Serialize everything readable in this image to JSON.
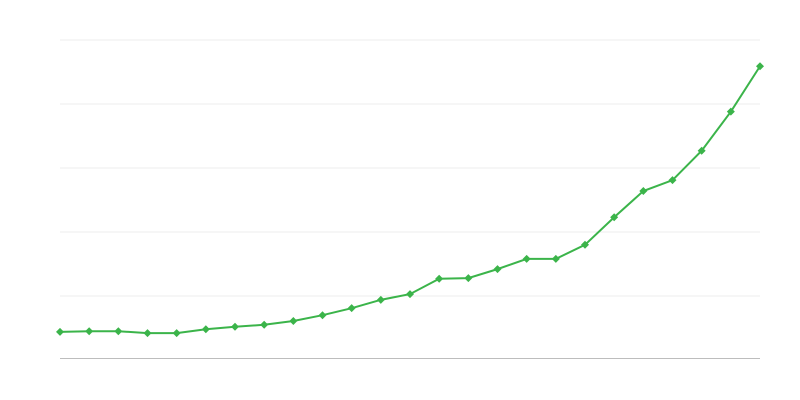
{
  "chart_data": {
    "type": "line",
    "categories": [
      null,
      null,
      null,
      null,
      null,
      null,
      null,
      null,
      null,
      null,
      null,
      null,
      null,
      null,
      null,
      null,
      null,
      null,
      null,
      null,
      null,
      null,
      null,
      null,
      null
    ],
    "series": [
      {
        "color": "#3bb44a",
        "values": [
          0.44,
          0.45,
          0.45,
          0.42,
          0.42,
          0.48,
          0.52,
          0.55,
          0.61,
          0.7,
          0.81,
          0.94,
          1.03,
          1.27,
          1.28,
          1.42,
          1.58,
          1.58,
          1.8,
          2.23,
          2.64,
          2.81,
          3.27,
          3.88,
          4.59
        ]
      }
    ],
    "ylim": [
      0,
      5
    ],
    "yticks": [
      1,
      2,
      3,
      4,
      5
    ],
    "grid": true
  }
}
